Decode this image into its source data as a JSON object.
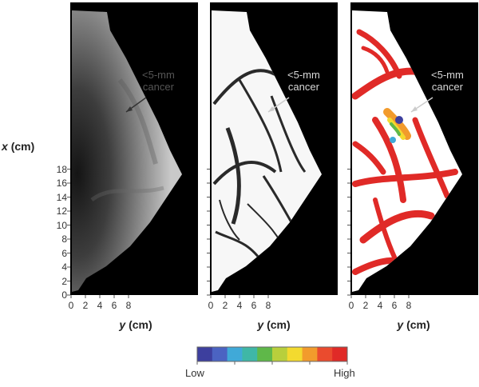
{
  "figure": {
    "panels": [
      {
        "name": "grayscale-map",
        "style": "gray"
      },
      {
        "name": "edge-map",
        "style": "edge"
      },
      {
        "name": "color-map",
        "style": "color"
      }
    ],
    "y_axis": {
      "label_var": "x",
      "label_unit": "(cm)",
      "ticks": [
        "0",
        "2",
        "4",
        "6",
        "8",
        "10",
        "12",
        "14",
        "16",
        "18"
      ]
    },
    "x_axis": {
      "label_var": "y",
      "label_unit": "(cm)",
      "ticks": [
        "0",
        "2",
        "4",
        "6",
        "8"
      ]
    },
    "annotation": {
      "line1": "<5-mm",
      "line2": "cancer"
    },
    "colorbar": {
      "low_label": "Low",
      "high_label": "High",
      "colors": [
        "#3d3f9e",
        "#4b63c2",
        "#40a9d8",
        "#3fb7a6",
        "#5fb849",
        "#b8cf3c",
        "#f3da2f",
        "#f29b2c",
        "#ea4b2e",
        "#e02a27"
      ]
    }
  }
}
